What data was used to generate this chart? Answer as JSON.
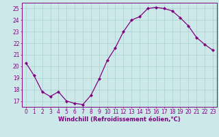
{
  "x": [
    0,
    1,
    2,
    3,
    4,
    5,
    6,
    7,
    8,
    9,
    10,
    11,
    12,
    13,
    14,
    15,
    16,
    17,
    18,
    19,
    20,
    21,
    22,
    23
  ],
  "y": [
    20.3,
    19.2,
    17.8,
    17.4,
    17.8,
    17.0,
    16.8,
    16.7,
    17.5,
    18.9,
    20.5,
    21.6,
    23.0,
    24.0,
    24.3,
    25.0,
    25.1,
    25.0,
    24.8,
    24.2,
    23.5,
    22.5,
    21.9,
    21.4
  ],
  "line_color": "#800080",
  "marker": "D",
  "marker_size": 2.2,
  "linewidth": 0.9,
  "xlabel": "Windchill (Refroidissement éolien,°C)",
  "xlabel_fontsize": 6.0,
  "xlabel_color": "#800080",
  "ylim": [
    16.5,
    25.5
  ],
  "xlim": [
    -0.5,
    23.5
  ],
  "yticks": [
    17,
    18,
    19,
    20,
    21,
    22,
    23,
    24,
    25
  ],
  "xtick_labels": [
    "0",
    "1",
    "2",
    "3",
    "4",
    "5",
    "6",
    "7",
    "8",
    "9",
    "10",
    "11",
    "12",
    "13",
    "14",
    "15",
    "16",
    "17",
    "18",
    "19",
    "20",
    "21",
    "22",
    "23"
  ],
  "grid_color": "#aed4d4",
  "bg_color": "#cce8e8",
  "tick_color": "#800080",
  "tick_fontsize": 5.5,
  "spine_color": "#800080"
}
